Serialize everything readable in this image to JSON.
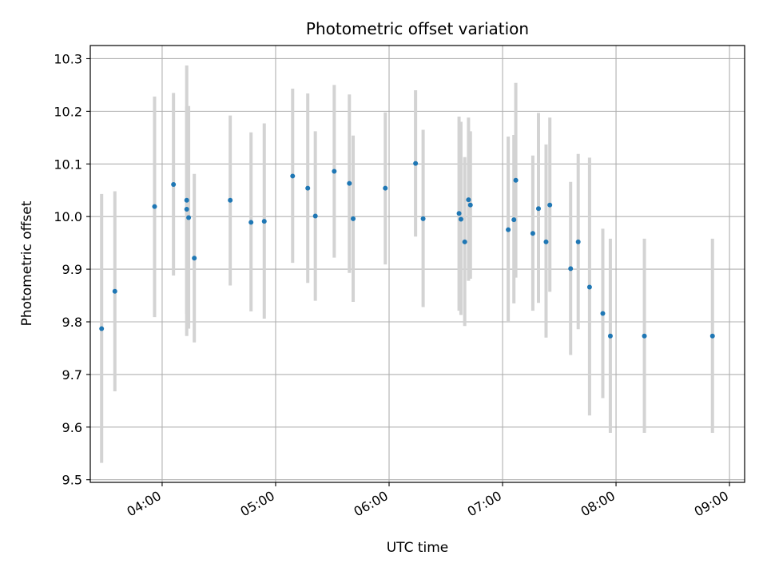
{
  "chart_data": {
    "type": "scatter",
    "title": "Photometric offset variation",
    "xlabel": "UTC time",
    "ylabel": "Photometric offset",
    "x_axis_type": "time",
    "xlim": [
      "03:22",
      "09:08"
    ],
    "ylim": [
      9.495,
      10.325
    ],
    "xticks": [
      "04:00",
      "05:00",
      "06:00",
      "07:00",
      "08:00",
      "09:00"
    ],
    "yticks": [
      9.5,
      9.6,
      9.7,
      9.8,
      9.9,
      10.0,
      10.1,
      10.2,
      10.3
    ],
    "grid": true,
    "point_color": "#1f77b4",
    "errorbar_color": "#d3d3d3",
    "points": [
      {
        "t": "03:28",
        "y": 9.787,
        "lo": 9.532,
        "hi": 10.043
      },
      {
        "t": "03:35",
        "y": 9.858,
        "lo": 9.668,
        "hi": 10.048
      },
      {
        "t": "03:56",
        "y": 10.019,
        "lo": 9.809,
        "hi": 10.228
      },
      {
        "t": "04:06",
        "y": 10.061,
        "lo": 9.888,
        "hi": 10.235
      },
      {
        "t": "04:13",
        "y": 10.031,
        "lo": 9.773,
        "hi": 10.287
      },
      {
        "t": "04:13",
        "y": 10.014,
        "lo": 9.815,
        "hi": 10.21
      },
      {
        "t": "04:14",
        "y": 9.998,
        "lo": 9.787,
        "hi": 10.21
      },
      {
        "t": "04:17",
        "y": 9.921,
        "lo": 9.761,
        "hi": 10.081
      },
      {
        "t": "04:36",
        "y": 10.031,
        "lo": 9.869,
        "hi": 10.192
      },
      {
        "t": "04:47",
        "y": 9.989,
        "lo": 9.82,
        "hi": 10.16
      },
      {
        "t": "04:54",
        "y": 9.991,
        "lo": 9.806,
        "hi": 10.177
      },
      {
        "t": "05:09",
        "y": 10.077,
        "lo": 9.912,
        "hi": 10.243
      },
      {
        "t": "05:17",
        "y": 10.054,
        "lo": 9.874,
        "hi": 10.234
      },
      {
        "t": "05:21",
        "y": 10.001,
        "lo": 9.84,
        "hi": 10.162
      },
      {
        "t": "05:31",
        "y": 10.086,
        "lo": 9.922,
        "hi": 10.25
      },
      {
        "t": "05:39",
        "y": 10.063,
        "lo": 9.893,
        "hi": 10.232
      },
      {
        "t": "05:41",
        "y": 9.996,
        "lo": 9.838,
        "hi": 10.154
      },
      {
        "t": "05:58",
        "y": 10.054,
        "lo": 9.909,
        "hi": 10.198
      },
      {
        "t": "06:14",
        "y": 10.101,
        "lo": 9.962,
        "hi": 10.24
      },
      {
        "t": "06:18",
        "y": 9.996,
        "lo": 9.828,
        "hi": 10.165
      },
      {
        "t": "06:37",
        "y": 10.006,
        "lo": 9.821,
        "hi": 10.19
      },
      {
        "t": "06:38",
        "y": 9.995,
        "lo": 9.813,
        "hi": 10.18
      },
      {
        "t": "06:40",
        "y": 9.952,
        "lo": 9.792,
        "hi": 10.113
      },
      {
        "t": "06:42",
        "y": 10.032,
        "lo": 9.878,
        "hi": 10.188
      },
      {
        "t": "06:43",
        "y": 10.022,
        "lo": 9.882,
        "hi": 10.162
      },
      {
        "t": "07:03",
        "y": 9.975,
        "lo": 9.8,
        "hi": 10.152
      },
      {
        "t": "07:06",
        "y": 9.994,
        "lo": 9.835,
        "hi": 10.155
      },
      {
        "t": "07:07",
        "y": 10.069,
        "lo": 9.884,
        "hi": 10.254
      },
      {
        "t": "07:16",
        "y": 9.968,
        "lo": 9.821,
        "hi": 10.116
      },
      {
        "t": "07:19",
        "y": 10.015,
        "lo": 9.836,
        "hi": 10.197
      },
      {
        "t": "07:23",
        "y": 9.952,
        "lo": 9.77,
        "hi": 10.137
      },
      {
        "t": "07:25",
        "y": 10.022,
        "lo": 9.857,
        "hi": 10.188
      },
      {
        "t": "07:36",
        "y": 9.901,
        "lo": 9.737,
        "hi": 10.066
      },
      {
        "t": "07:40",
        "y": 9.952,
        "lo": 9.786,
        "hi": 10.119
      },
      {
        "t": "07:46",
        "y": 9.866,
        "lo": 9.622,
        "hi": 10.112
      },
      {
        "t": "07:53",
        "y": 9.816,
        "lo": 9.655,
        "hi": 9.977
      },
      {
        "t": "07:57",
        "y": 9.773,
        "lo": 9.589,
        "hi": 9.958
      },
      {
        "t": "08:15",
        "y": 9.773,
        "lo": 9.589,
        "hi": 9.958
      },
      {
        "t": "08:51",
        "y": 9.773,
        "lo": 9.589,
        "hi": 9.958
      }
    ]
  }
}
